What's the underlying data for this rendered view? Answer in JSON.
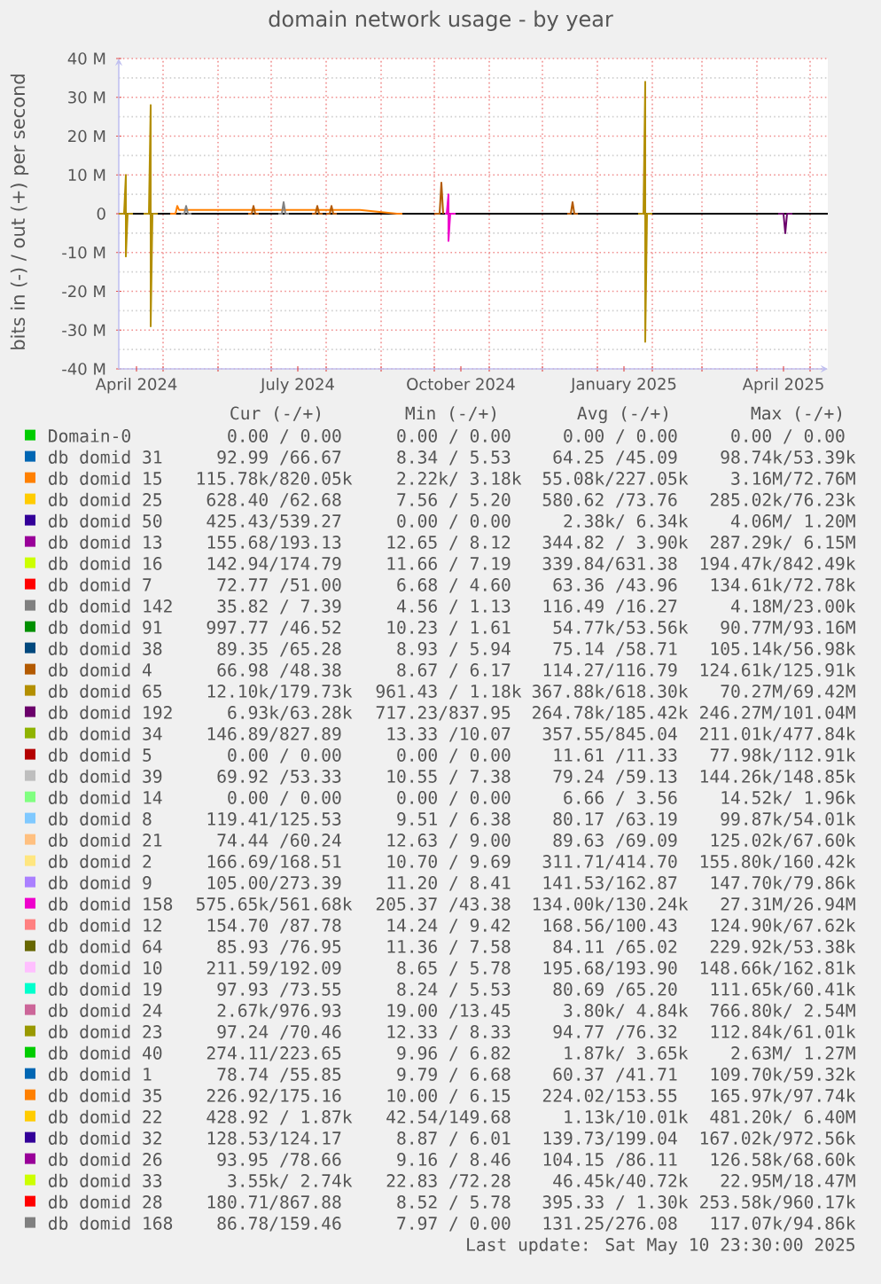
{
  "chart_data": {
    "type": "line",
    "title": "domain network usage - by year",
    "ylabel": "bits in (-) / out (+) per second",
    "xlim": [
      "2024-04-06",
      "2025-05-11"
    ],
    "ylim": [
      -40,
      40
    ],
    "xticks": [
      {
        "value": "2024-04-16",
        "label": "April 2024"
      },
      {
        "value": "2024-05-01",
        "label": null
      },
      {
        "value": "2024-06-01",
        "label": null
      },
      {
        "value": "2024-07-01",
        "label": null
      },
      {
        "value": "2024-07-16",
        "label": "July 2024"
      },
      {
        "value": "2024-08-01",
        "label": null
      },
      {
        "value": "2024-09-01",
        "label": null
      },
      {
        "value": "2024-10-01",
        "label": null
      },
      {
        "value": "2024-10-16",
        "label": "October 2024"
      },
      {
        "value": "2024-11-01",
        "label": null
      },
      {
        "value": "2024-12-01",
        "label": null
      },
      {
        "value": "2025-01-01",
        "label": null
      },
      {
        "value": "2025-01-16",
        "label": "January 2025"
      },
      {
        "value": "2025-02-01",
        "label": null
      },
      {
        "value": "2025-03-01",
        "label": null
      },
      {
        "value": "2025-04-01",
        "label": null
      },
      {
        "value": "2025-04-16",
        "label": "April 2025"
      },
      {
        "value": "2025-05-01",
        "label": null
      }
    ],
    "yticks": [
      {
        "value": -40,
        "label": "-40 M"
      },
      {
        "value": -30,
        "label": "-30 M"
      },
      {
        "value": -20,
        "label": "-20 M"
      },
      {
        "value": -10,
        "label": "-10 M"
      },
      0,
      {
        "value": 10,
        "label": "10 M"
      },
      {
        "value": 20,
        "label": "20 M"
      },
      {
        "value": 30,
        "label": "30 M"
      },
      {
        "value": 40,
        "label": "40 M"
      }
    ],
    "grid": true,
    "legend": "bottom",
    "ref_lines": [
      {
        "axis": "y",
        "value": 0,
        "color": "#000000"
      }
    ],
    "series": [
      {
        "name": "Domain-0",
        "color": "#00cc00"
      },
      {
        "name": "db domid 31",
        "color": "#0066b3"
      },
      {
        "name": "db domid 15",
        "color": "#ff8000",
        "x": [
          "2024-05-05",
          "2024-05-08",
          "2024-05-09",
          "2024-05-10",
          "2024-06-10",
          "2024-07-15",
          "2024-08-20",
          "2024-09-10",
          "2024-09-13"
        ],
        "values": [
          0,
          0,
          2,
          1,
          1,
          1,
          1,
          0,
          0
        ]
      },
      {
        "name": "db domid 25",
        "color": "#ffcc00"
      },
      {
        "name": "db domid 50",
        "color": "#330099"
      },
      {
        "name": "db domid 13",
        "color": "#990099"
      },
      {
        "name": "db domid 16",
        "color": "#ccff00"
      },
      {
        "name": "db domid 7",
        "color": "#ff0000"
      },
      {
        "name": "db domid 142",
        "color": "#808080",
        "x": [
          "2024-05-11",
          "2024-05-13",
          "2024-05-14",
          "2024-05-15",
          "2024-05-17",
          "2024-06-10",
          "2024-07-05",
          "2024-07-07",
          "2024-07-08",
          "2024-07-09",
          "2024-07-11"
        ],
        "values": [
          0,
          0,
          2,
          0,
          0,
          null,
          0,
          0,
          3,
          0,
          0
        ]
      },
      {
        "name": "db domid 91",
        "color": "#008f00"
      },
      {
        "name": "db domid 38",
        "color": "#00487d"
      },
      {
        "name": "db domid 4",
        "color": "#b35a00",
        "x": [
          "2024-06-18",
          "2024-06-20",
          "2024-06-21",
          "2024-06-22",
          "2024-06-24",
          "2024-07-10",
          "2024-07-24",
          "2024-07-26",
          "2024-07-27",
          "2024-07-28",
          "2024-07-30",
          "2024-07-31",
          "2024-08-01",
          "2024-08-03",
          "2024-08-04",
          "2024-08-05",
          "2024-08-07",
          "2024-09-01",
          "2024-10-01",
          "2024-10-04",
          "2024-10-05",
          "2024-10-06",
          "2024-11-01",
          "2024-12-15",
          "2024-12-17",
          "2024-12-18",
          "2024-12-19",
          "2024-12-21"
        ],
        "values": [
          0,
          0,
          2,
          0,
          0,
          null,
          0,
          0,
          2,
          0,
          0,
          null,
          0,
          0,
          2,
          0,
          0,
          null,
          0,
          0,
          8,
          0,
          null,
          0,
          0,
          3,
          0,
          0
        ]
      },
      {
        "name": "db domid 65",
        "color": "#b38f00",
        "x": [
          "2024-04-06",
          "2024-04-09",
          "2024-04-10",
          "2024-04-10",
          "2024-04-11",
          "2024-04-14",
          "2024-04-17",
          "2024-04-20",
          "2024-04-23",
          "2024-04-24",
          "2024-04-24",
          "2024-04-25",
          "2024-04-28",
          "2024-06-01",
          "2025-01-24",
          "2025-01-27",
          "2025-01-28",
          "2025-01-28",
          "2025-01-29",
          "2025-02-01"
        ],
        "values": [
          0,
          0,
          10,
          -11,
          0,
          0,
          null,
          0,
          0,
          28,
          -29,
          0,
          0,
          null,
          0,
          0,
          34,
          -33,
          0,
          0
        ]
      },
      {
        "name": "db domid 192",
        "color": "#6b006b",
        "x": [
          "2025-04-13",
          "2025-04-16",
          "2025-04-17",
          "2025-04-18",
          "2025-04-21"
        ],
        "values": [
          0,
          0,
          -5,
          0,
          0
        ]
      },
      {
        "name": "db domid 34",
        "color": "#8fb300"
      },
      {
        "name": "db domid 5",
        "color": "#b30000"
      },
      {
        "name": "db domid 39",
        "color": "#bebebe"
      },
      {
        "name": "db domid 14",
        "color": "#80ff80"
      },
      {
        "name": "db domid 8",
        "color": "#80c9ff"
      },
      {
        "name": "db domid 21",
        "color": "#ffc080"
      },
      {
        "name": "db domid 2",
        "color": "#ffe680"
      },
      {
        "name": "db domid 9",
        "color": "#aa80ff"
      },
      {
        "name": "db domid 158",
        "color": "#ee00cc",
        "x": [
          "2024-10-07",
          "2024-10-08",
          "2024-10-09",
          "2024-10-09",
          "2024-10-10",
          "2024-10-13"
        ],
        "values": [
          0,
          0,
          5,
          -7,
          0,
          0
        ]
      },
      {
        "name": "db domid 12",
        "color": "#ff8080"
      },
      {
        "name": "db domid 64",
        "color": "#666600"
      },
      {
        "name": "db domid 10",
        "color": "#ffbfff"
      },
      {
        "name": "db domid 19",
        "color": "#00ffcc"
      },
      {
        "name": "db domid 24",
        "color": "#cc6699"
      },
      {
        "name": "db domid 23",
        "color": "#999900"
      },
      {
        "name": "db domid 40",
        "color": "#00cc00"
      },
      {
        "name": "db domid 1",
        "color": "#0066b3"
      },
      {
        "name": "db domid 35",
        "color": "#ff8000"
      },
      {
        "name": "db domid 22",
        "color": "#ffcc00"
      },
      {
        "name": "db domid 32",
        "color": "#330099"
      },
      {
        "name": "db domid 26",
        "color": "#990099"
      },
      {
        "name": "db domid 33",
        "color": "#ccff00"
      },
      {
        "name": "db domid 28",
        "color": "#ff0000"
      },
      {
        "name": "db domid 168",
        "color": "#808080"
      }
    ],
    "annotations": [
      "Cur (-/+)",
      "Min (-/+)",
      "Avg (-/+)",
      "Max (-/+)",
      "0.00 / 0.00",
      "0.00 / 0.00",
      "0.00 / 0.00",
      "0.00 / 0.00",
      "92.99 /66.67",
      "8.34 / 5.53",
      "64.25 /45.09",
      "98.74k/53.39k",
      "115.78k/820.05k",
      "2.22k/ 3.18k",
      "55.08k/227.05k",
      "3.16M/72.76M",
      "628.40 /62.68",
      "7.56 / 5.20",
      "580.62 /73.76",
      "285.02k/76.23k",
      "425.43/539.27",
      "0.00 / 0.00",
      "2.38k/ 6.34k",
      "4.06M/ 1.20M",
      "155.68/193.13",
      "12.65 / 8.12",
      "344.82 / 3.90k",
      "287.29k/ 6.15M",
      "142.94/174.79",
      "11.66 / 7.19",
      "339.84/631.38",
      "194.47k/842.49k",
      "72.77 /51.00",
      "6.68 / 4.60",
      "63.36 /43.96",
      "134.61k/72.78k",
      "35.82 / 7.39",
      "4.56 / 1.13",
      "116.49 /16.27",
      "4.18M/23.00k",
      "997.77 /46.52",
      "10.23 / 1.61",
      "54.77k/53.56k",
      "90.77M/93.16M",
      "89.35 /65.28",
      "8.93 / 5.94",
      "75.14 /58.71",
      "105.14k/56.98k",
      "66.98 /48.38",
      "8.67 / 6.17",
      "114.27/116.79",
      "124.61k/125.91k",
      "12.10k/179.73k",
      "961.43 / 1.18k",
      "367.88k/618.30k",
      "70.27M/69.42M",
      "6.93k/63.28k",
      "717.23/837.95",
      "264.78k/185.42k",
      "246.27M/101.04M",
      "146.89/827.89",
      "13.33 /10.07",
      "357.55/845.04",
      "211.01k/477.84k",
      "0.00 / 0.00",
      "0.00 / 0.00",
      "11.61 /11.33",
      "77.98k/112.91k",
      "69.92 /53.33",
      "10.55 / 7.38",
      "79.24 /59.13",
      "144.26k/148.85k",
      "0.00 / 0.00",
      "0.00 / 0.00",
      "6.66 / 3.56",
      "14.52k/ 1.96k",
      "119.41/125.53",
      "9.51 / 6.38",
      "80.17 /63.19",
      "99.87k/54.01k",
      "74.44 /60.24",
      "12.63 / 9.00",
      "89.63 /69.09",
      "125.02k/67.60k",
      "166.69/168.51",
      "10.70 / 9.69",
      "311.71/414.70",
      "155.80k/160.42k",
      "105.00/273.39",
      "11.20 / 8.41",
      "141.53/162.87",
      "147.70k/79.86k",
      "575.65k/561.68k",
      "205.37 /43.38",
      "134.00k/130.24k",
      "27.31M/26.94M",
      "154.70 /87.78",
      "14.24 / 9.42",
      "168.56/100.43",
      "124.90k/67.62k",
      "85.93 /76.95",
      "11.36 / 7.58",
      "84.11 /65.02",
      "229.92k/53.38k",
      "211.59/192.09",
      "8.65 / 5.78",
      "195.68/193.90",
      "148.66k/162.81k",
      "97.93 /73.55",
      "8.24 / 5.53",
      "80.69 /65.20",
      "111.65k/60.41k",
      "2.67k/976.93",
      "19.00 /13.45",
      "3.80k/ 4.84k",
      "766.80k/ 2.54M",
      "97.24 /70.46",
      "12.33 / 8.33",
      "94.77 /76.32",
      "112.84k/61.01k",
      "274.11/223.65",
      "9.96 / 6.82",
      "1.87k/ 3.65k",
      "2.63M/ 1.27M",
      "78.74 /55.85",
      "9.79 / 6.68",
      "60.37 /41.71",
      "109.70k/59.32k",
      "226.92/175.16",
      "10.00 / 6.15",
      "224.02/153.55",
      "165.97k/97.74k",
      "428.92 / 1.87k",
      "42.54/149.68",
      "1.13k/10.01k",
      "481.20k/ 6.40M",
      "128.53/124.17",
      "8.87 / 6.01",
      "139.73/199.04",
      "167.02k/972.56k",
      "93.95 /78.66",
      "9.16 / 8.46",
      "104.15 /86.11",
      "126.58k/68.60k",
      "3.55k/ 2.74k",
      "22.83 /72.28",
      "46.45k/40.72k",
      "22.95M/18.47M",
      "180.71/867.88",
      "8.52 / 5.78",
      "395.33 / 1.30k",
      "253.58k/960.17k",
      "86.78/159.46",
      "7.97 / 0.00",
      "131.25/276.08",
      "117.07k/94.86k",
      "Last update: Sat May 10 23:30:00 2025"
    ]
  }
}
